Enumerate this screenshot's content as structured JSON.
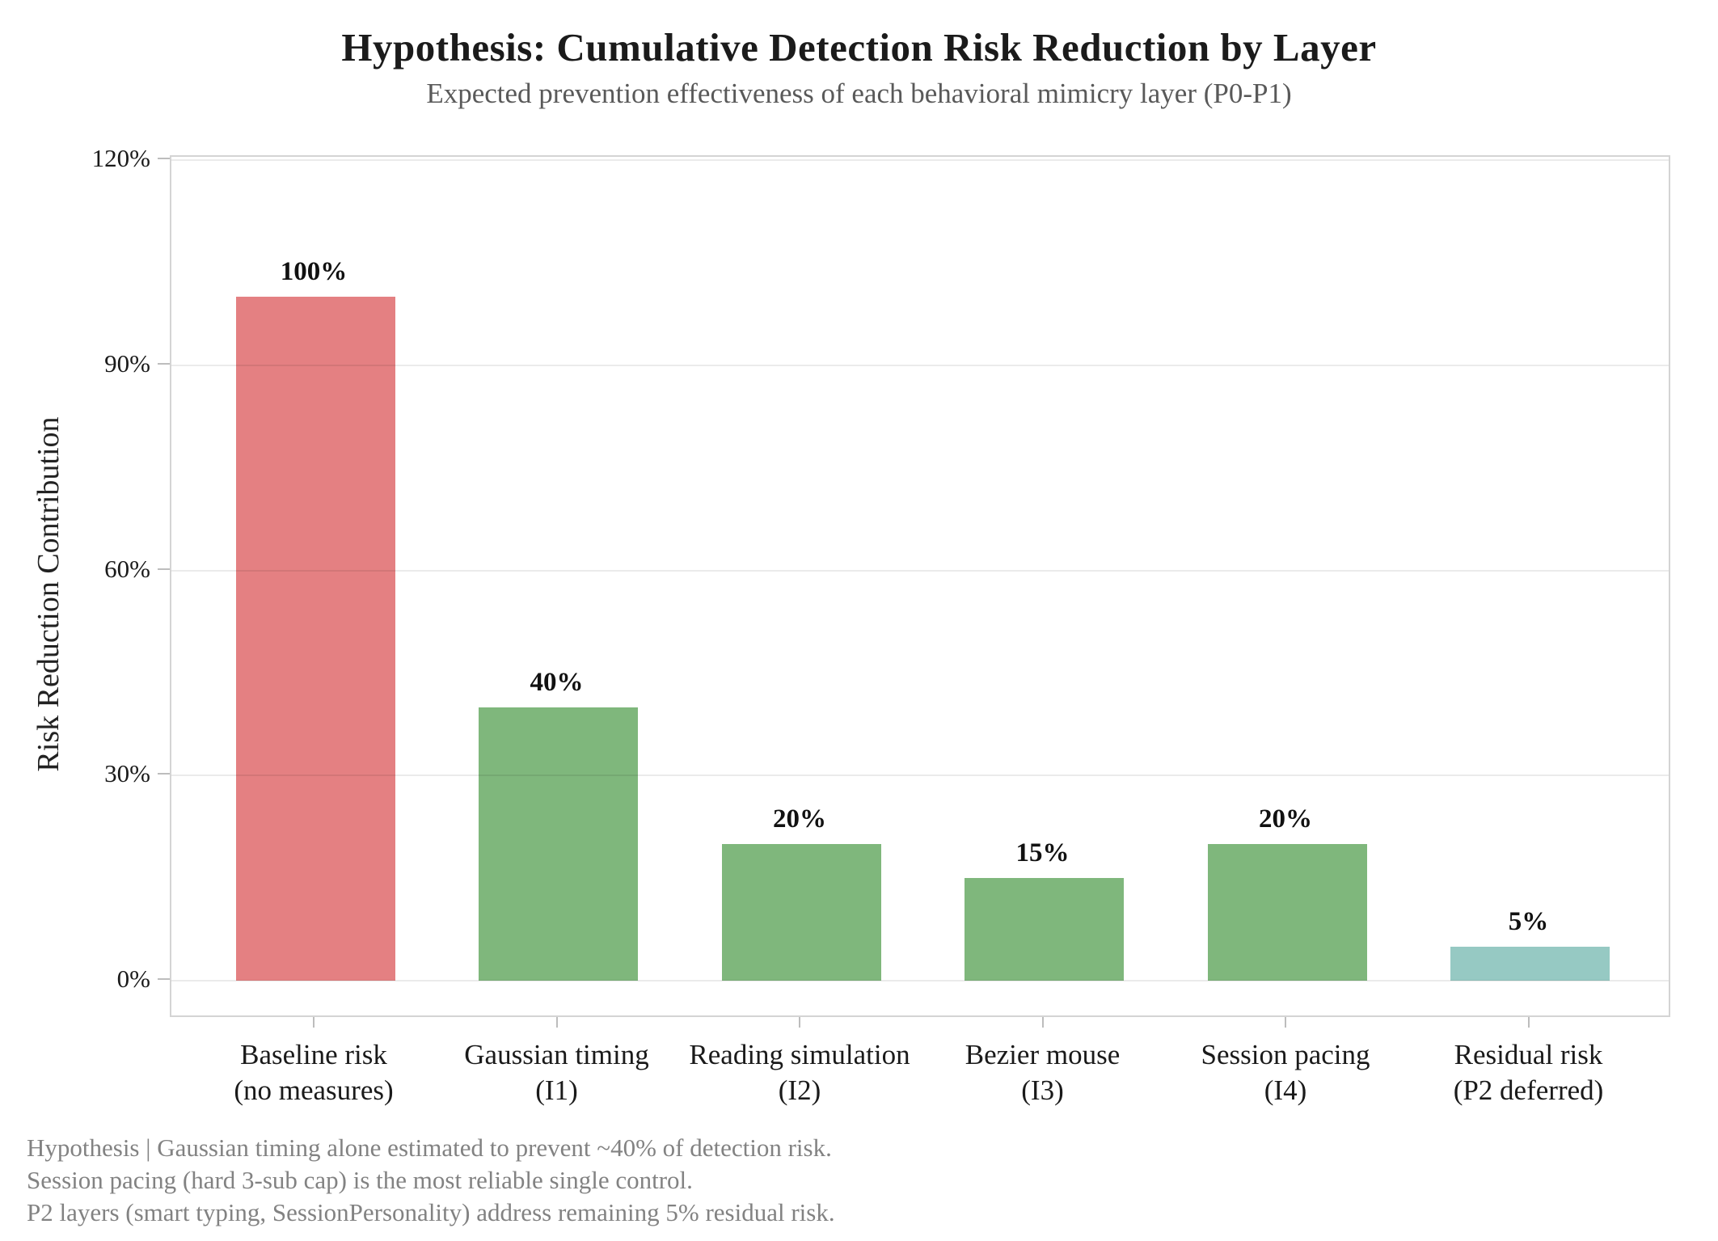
{
  "chart_data": {
    "type": "bar",
    "title": "Hypothesis: Cumulative Detection Risk Reduction by Layer",
    "subtitle": "Expected prevention effectiveness of each behavioral mimicry layer (P0-P1)",
    "ylabel": "Risk Reduction Contribution",
    "xlabel": "",
    "categories": [
      "Baseline risk\n(no measures)",
      "Gaussian timing\n(I1)",
      "Reading simulation\n(I2)",
      "Bezier mouse\n(I3)",
      "Session pacing\n(I4)",
      "Residual risk\n(P2 deferred)"
    ],
    "values": [
      100,
      40,
      20,
      15,
      20,
      5
    ],
    "value_labels": [
      "100%",
      "40%",
      "20%",
      "15%",
      "20%",
      "5%"
    ],
    "bar_colors": [
      "#e48082",
      "#7fb77c",
      "#7fb77c",
      "#7fb77c",
      "#7fb77c",
      "#96c9c3"
    ],
    "yticks": [
      0,
      30,
      60,
      90,
      120
    ],
    "ytick_labels": [
      "0%",
      "30%",
      "60%",
      "90%",
      "120%"
    ],
    "ylim": [
      -5.6,
      120.5
    ],
    "grid": "horizontal-only",
    "legend": "none"
  },
  "footer": {
    "lines": [
      "Hypothesis | Gaussian timing alone estimated to prevent ~40% of detection risk.",
      "Session pacing (hard 3-sub cap) is the most reliable single control.",
      "P2 layers (smart typing, SessionPersonality) address remaining 5% residual risk."
    ]
  }
}
